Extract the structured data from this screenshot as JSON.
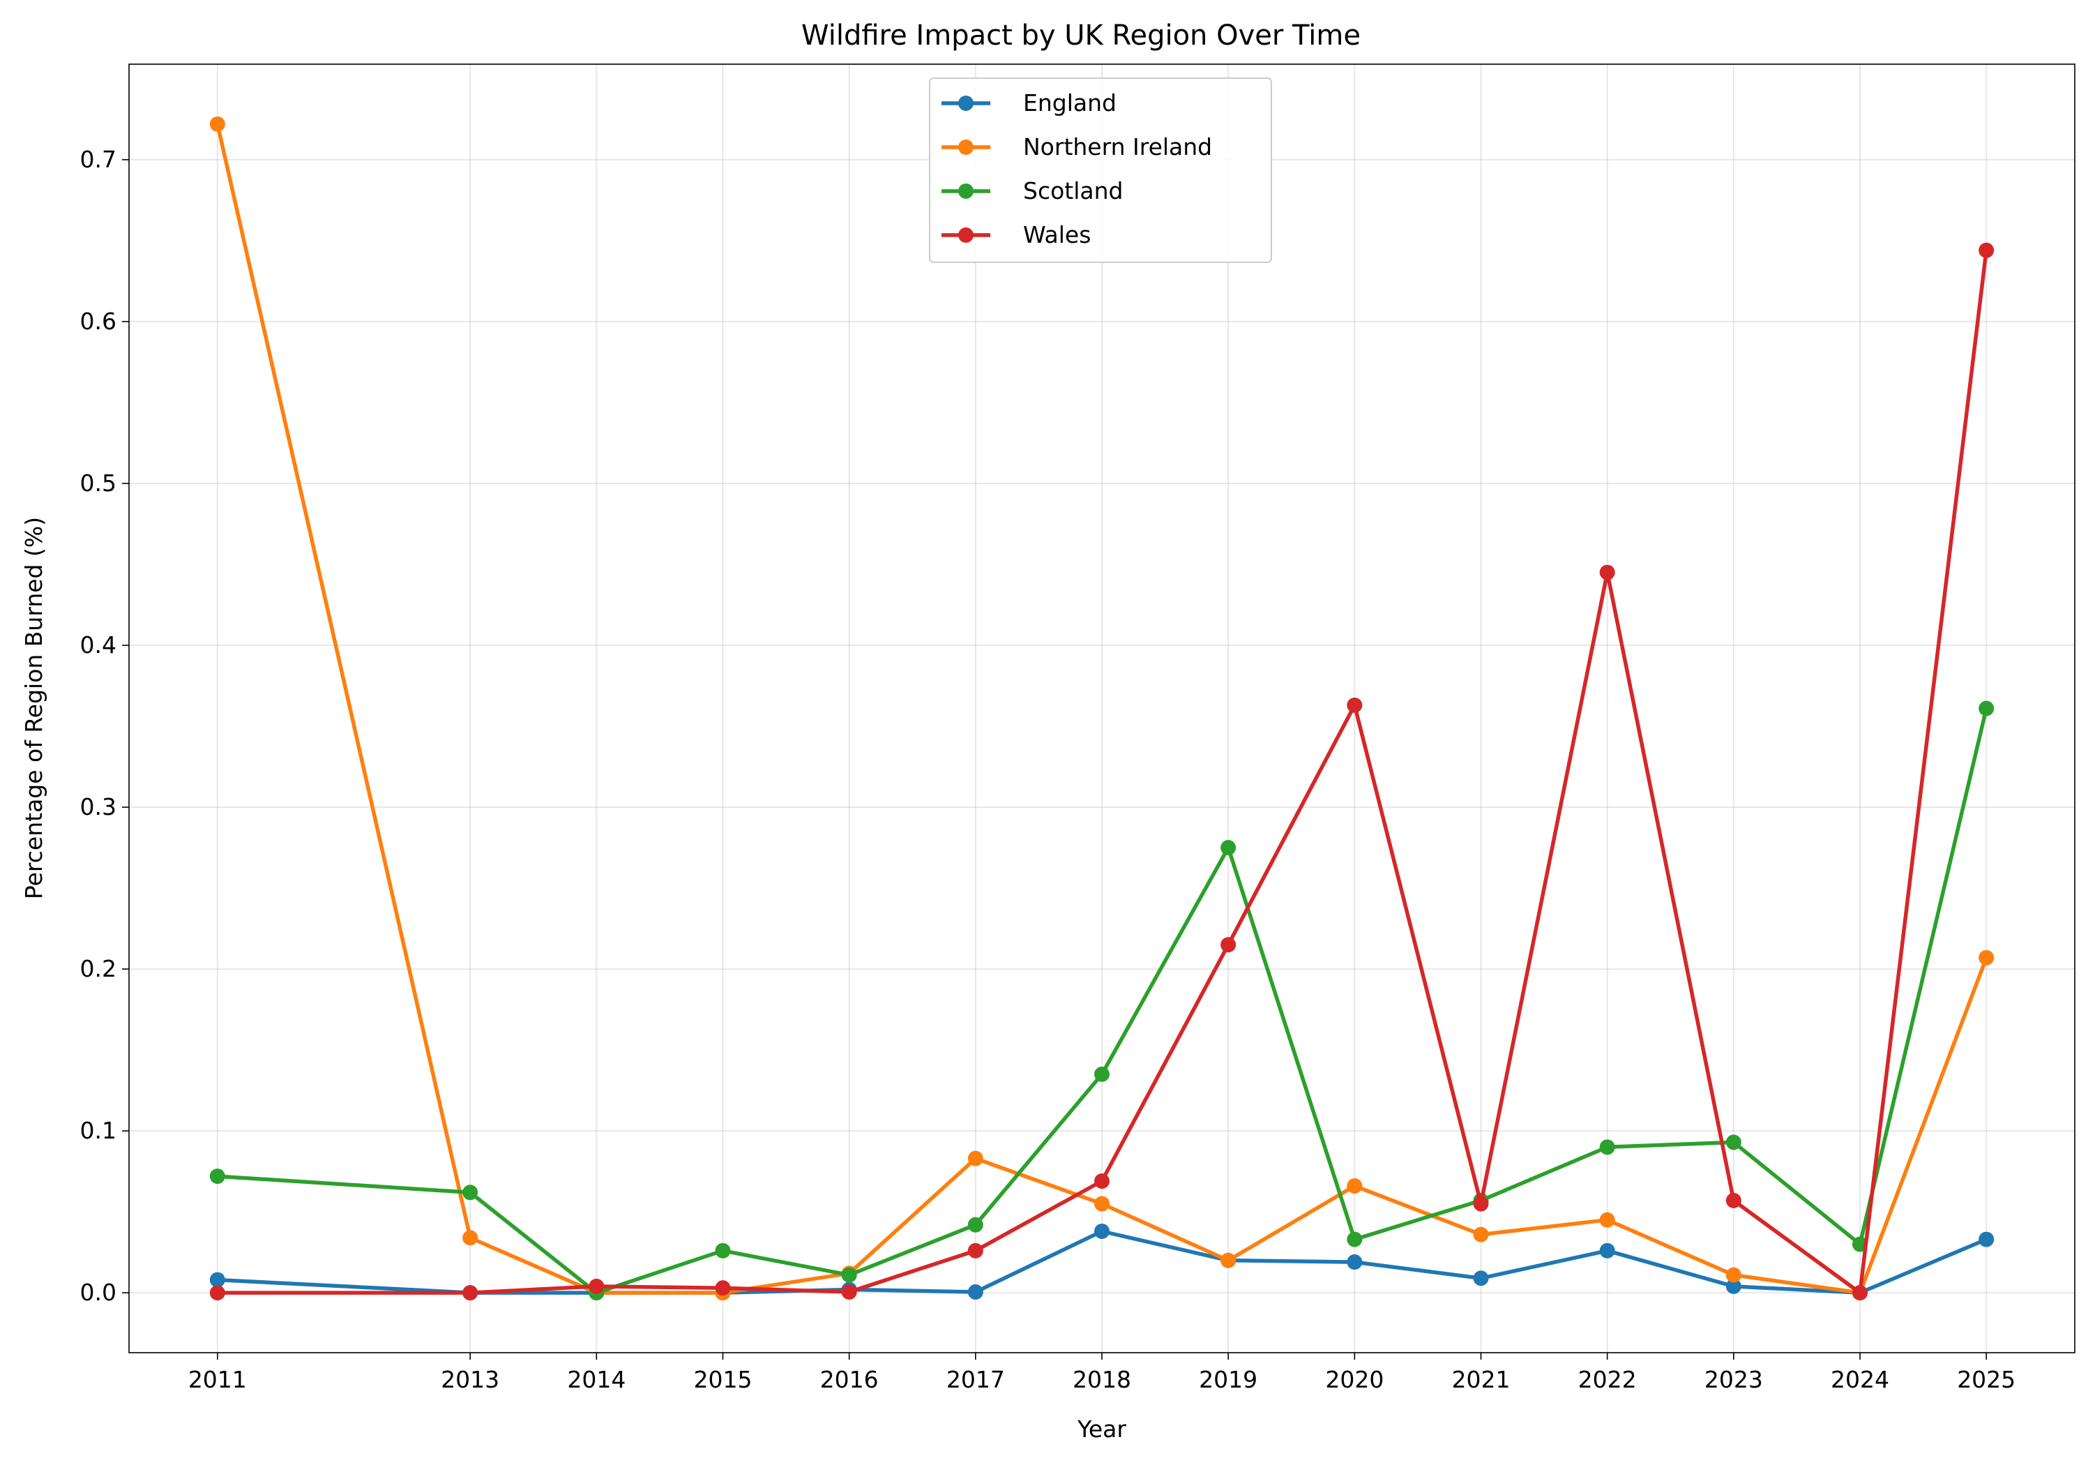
{
  "chart_data": {
    "type": "line",
    "title": "Wildfire Impact by UK Region Over Time",
    "xlabel": "Year",
    "ylabel": "Percentage of Region Burned (%)",
    "x": [
      2011,
      2013,
      2014,
      2015,
      2016,
      2017,
      2018,
      2019,
      2020,
      2021,
      2022,
      2023,
      2024,
      2025
    ],
    "xlim": [
      2010.3,
      2025.7
    ],
    "ylim": [
      -0.037,
      0.759
    ],
    "yticks": [
      0.0,
      0.1,
      0.2,
      0.3,
      0.4,
      0.5,
      0.6,
      0.7
    ],
    "ytick_labels": [
      "0.0",
      "0.1",
      "0.2",
      "0.3",
      "0.4",
      "0.5",
      "0.6",
      "0.7"
    ],
    "xtick_labels": [
      "2011",
      "2013",
      "2014",
      "2015",
      "2016",
      "2017",
      "2018",
      "2019",
      "2020",
      "2021",
      "2022",
      "2023",
      "2024",
      "2025"
    ],
    "grid": true,
    "legend_position": "top-center",
    "series": [
      {
        "name": "England",
        "color": "#1f77b4",
        "values": [
          0.008,
          0.0,
          0.0,
          0.0,
          0.002,
          0.0005,
          0.038,
          0.02,
          0.019,
          0.009,
          0.026,
          0.004,
          0.0,
          0.033
        ]
      },
      {
        "name": "Northern Ireland",
        "color": "#ff7f0e",
        "values": [
          0.722,
          0.034,
          0.0,
          0.0,
          0.012,
          0.083,
          0.055,
          0.02,
          0.066,
          0.036,
          0.045,
          0.011,
          0.0,
          0.207
        ]
      },
      {
        "name": "Scotland",
        "color": "#2ca02c",
        "values": [
          0.072,
          0.062,
          0.0,
          0.026,
          0.011,
          0.042,
          0.135,
          0.275,
          0.033,
          0.057,
          0.09,
          0.093,
          0.03,
          0.361
        ]
      },
      {
        "name": "Wales",
        "color": "#d62728",
        "values": [
          0.0,
          0.0,
          0.004,
          0.003,
          0.0005,
          0.026,
          0.069,
          0.215,
          0.363,
          0.055,
          0.445,
          0.057,
          0.0,
          0.644
        ]
      }
    ]
  }
}
